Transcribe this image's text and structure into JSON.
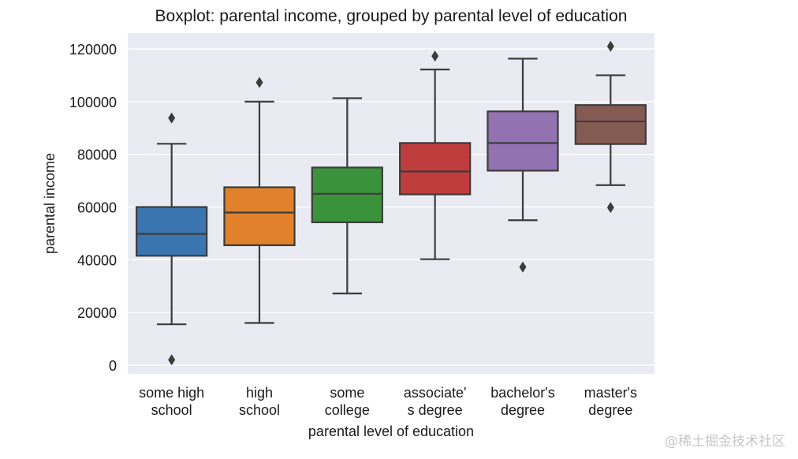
{
  "watermark": "@稀土掘金技术社区",
  "chart_data": {
    "type": "boxplot",
    "title": "Boxplot: parental income, grouped by parental level of education",
    "xlabel": "parental level of education",
    "ylabel": "parental income",
    "ylim": [
      -3300,
      126000
    ],
    "yticks": [
      0,
      20000,
      40000,
      60000,
      80000,
      100000,
      120000
    ],
    "ytick_labels": [
      "0",
      "20000",
      "40000",
      "60000",
      "80000",
      "100000",
      "120000"
    ],
    "grid": true,
    "categories": [
      [
        "some high",
        "school"
      ],
      [
        "high",
        "school"
      ],
      [
        "some",
        "college"
      ],
      [
        "associate'",
        "s degree"
      ],
      [
        "bachelor's",
        "degree"
      ],
      [
        "master's",
        "degree"
      ]
    ],
    "series": [
      {
        "name": "some high school",
        "color": "#3a75af",
        "whisker_low": 15500,
        "q1": 41500,
        "median": 49800,
        "q3": 60000,
        "whisker_high": 84000,
        "outliers": [
          93800,
          2000
        ]
      },
      {
        "name": "high school",
        "color": "#e1812c",
        "whisker_low": 16000,
        "q1": 45500,
        "median": 57900,
        "q3": 67500,
        "whisker_high": 100000,
        "outliers": [
          107300
        ]
      },
      {
        "name": "some college",
        "color": "#3a923a",
        "whisker_low": 27200,
        "q1": 54200,
        "median": 65000,
        "q3": 75000,
        "whisker_high": 101300,
        "outliers": []
      },
      {
        "name": "associate's degree",
        "color": "#c03d3e",
        "whisker_low": 40200,
        "q1": 64800,
        "median": 73500,
        "q3": 84300,
        "whisker_high": 112200,
        "outliers": [
          117300
        ]
      },
      {
        "name": "bachelor's degree",
        "color": "#9372b2",
        "whisker_low": 55000,
        "q1": 73800,
        "median": 84300,
        "q3": 96300,
        "whisker_high": 116300,
        "outliers": [
          37200
        ]
      },
      {
        "name": "master's degree",
        "color": "#845b53",
        "whisker_low": 68300,
        "q1": 83900,
        "median": 92500,
        "q3": 98700,
        "whisker_high": 110000,
        "outliers": [
          121000,
          59800
        ]
      }
    ]
  }
}
